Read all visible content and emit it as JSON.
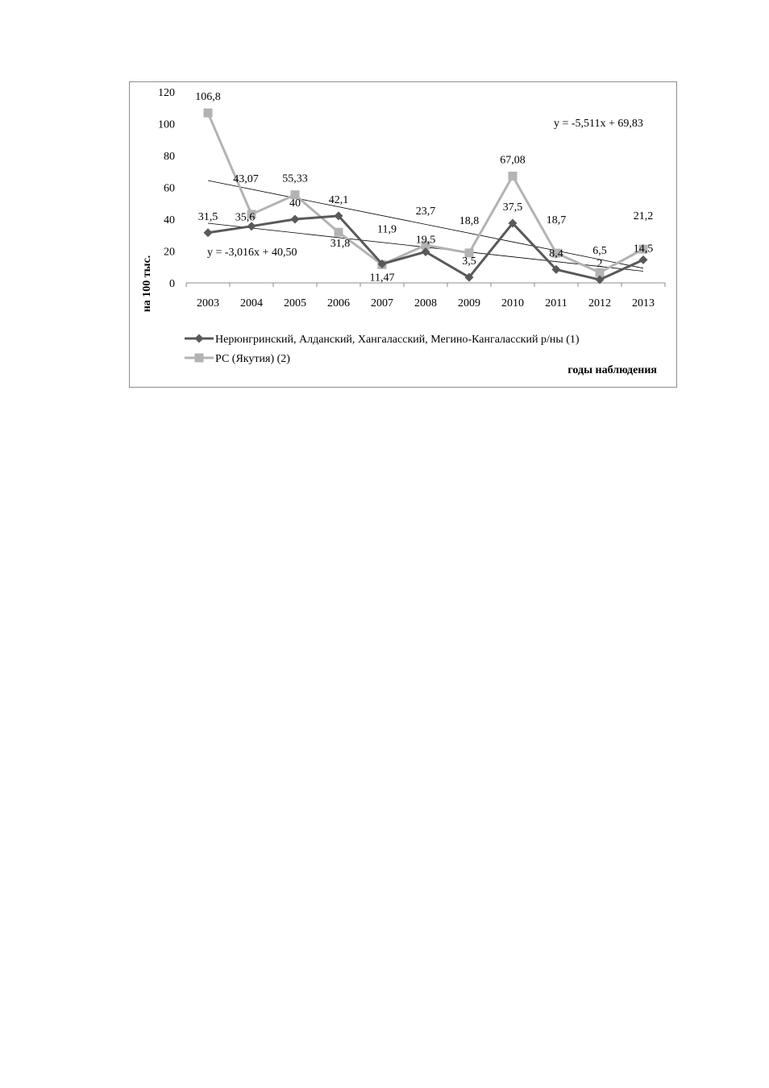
{
  "chart_data": {
    "type": "line",
    "title": "",
    "xlabel": "годы наблюдения",
    "ylabel": "на 100 тыс.",
    "ylim": [
      0,
      120
    ],
    "yticks": [
      "0",
      "20",
      "40",
      "60",
      "80",
      "100",
      "120"
    ],
    "categories": [
      "2003",
      "2004",
      "2005",
      "2006",
      "2007",
      "2008",
      "2009",
      "2010",
      "2011",
      "2012",
      "2013"
    ],
    "legend_position": "bottom",
    "series": [
      {
        "name": "Нерюнгринский, Алданский, Хангаласский, Мегино-Кангаласский р/ны (1)",
        "color": "#595959",
        "marker": "diamond",
        "values": [
          31.5,
          35.6,
          40,
          42.1,
          11.9,
          19.5,
          3.5,
          37.5,
          8.4,
          2,
          14.5
        ],
        "labels": [
          "31,5",
          "35,6",
          "40",
          "42,1",
          "11,9",
          "19,5",
          "3,5",
          "37,5",
          "8,4",
          "2",
          "14,5"
        ]
      },
      {
        "name": "РС (Якутия) (2)",
        "color": "#b3b3b3",
        "marker": "square",
        "values": [
          106.8,
          43.07,
          55.33,
          31.8,
          11.47,
          23.7,
          18.8,
          67.08,
          18.7,
          6.5,
          21.2
        ],
        "labels": [
          "106,8",
          "43,07",
          "55,33",
          "31,8",
          "11,47",
          "23,7",
          "18,8",
          "67,08",
          "18,7",
          "6,5",
          "21,2"
        ]
      }
    ],
    "trendlines": [
      {
        "series": 0,
        "slope": -3.016,
        "intercept": 40.5,
        "equation": "y = -3,016x + 40,50"
      },
      {
        "series": 1,
        "slope": -5.511,
        "intercept": 69.83,
        "equation": "y = -5,511x + 69,83"
      }
    ]
  }
}
